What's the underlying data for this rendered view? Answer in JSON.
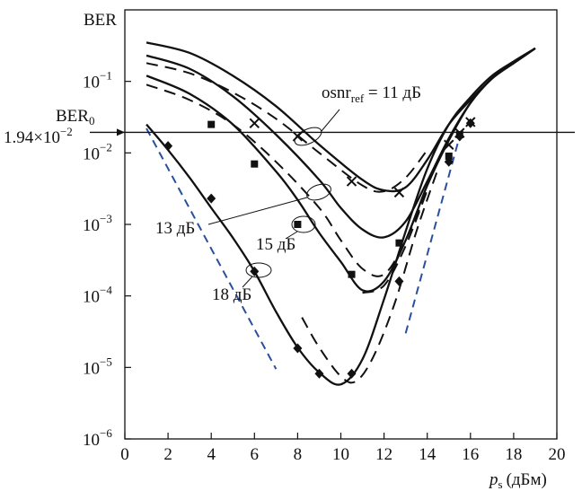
{
  "chart_data": {
    "type": "line",
    "ylabel": "BER",
    "xlabel": {
      "main": "p",
      "sub": "s",
      "unit": "(дБм)"
    },
    "x_ticks": [
      "0",
      "2",
      "4",
      "6",
      "8",
      "10",
      "12",
      "14",
      "16",
      "18",
      "20"
    ],
    "y_ticks": [
      {
        "base": "10",
        "exp": "−1"
      },
      {
        "base": "10",
        "exp": "−2"
      },
      {
        "base": "10",
        "exp": "−3"
      },
      {
        "base": "10",
        "exp": "−4"
      },
      {
        "base": "10",
        "exp": "−5"
      },
      {
        "base": "10",
        "exp": "−6"
      }
    ],
    "xlim": [
      0,
      20
    ],
    "ylim": [
      1e-06,
      1
    ],
    "y_scale": "log",
    "reference_line": {
      "y": 0.0194,
      "label_top": "BER",
      "label_top_sub": "0",
      "label_value_mantissa": "1.94×10",
      "label_value_exp": "−2"
    },
    "annotations": {
      "osnr_prefix": "osnr",
      "osnr_sub": "ref",
      "osnr_value": " = 11 дБ",
      "label_13": "13 дБ",
      "label_15": "15 дБ",
      "label_18": "18 дБ"
    },
    "series": [
      {
        "osnr_db": 11,
        "solid_theory": [
          [
            1,
            0.35
          ],
          [
            3,
            0.25
          ],
          [
            5,
            0.12
          ],
          [
            7,
            0.045
          ],
          [
            9,
            0.013
          ],
          [
            11,
            0.0042
          ],
          [
            12,
            0.003
          ],
          [
            13,
            0.0033
          ],
          [
            14,
            0.008
          ],
          [
            15,
            0.025
          ],
          [
            16,
            0.055
          ],
          [
            17,
            0.11
          ],
          [
            18,
            0.18
          ],
          [
            19,
            0.29
          ]
        ],
        "dashed_theory": [
          [
            1,
            0.18
          ],
          [
            3,
            0.13
          ],
          [
            5,
            0.07
          ],
          [
            7,
            0.03
          ],
          [
            9,
            0.01
          ],
          [
            11,
            0.0035
          ],
          [
            12,
            0.0029
          ],
          [
            13,
            0.0045
          ],
          [
            14,
            0.011
          ]
        ],
        "markers": "cross",
        "measured": [
          [
            6,
            0.026
          ],
          [
            8,
            0.017
          ],
          [
            10.5,
            0.004
          ],
          [
            12.7,
            0.0028
          ],
          [
            15,
            0.013
          ],
          [
            15.5,
            0.019
          ],
          [
            16,
            0.027
          ]
        ]
      },
      {
        "osnr_db": 13,
        "solid_theory": [
          [
            1,
            0.23
          ],
          [
            3,
            0.15
          ],
          [
            5,
            0.062
          ],
          [
            7,
            0.018
          ],
          [
            9,
            0.0042
          ],
          [
            10,
            0.0017
          ],
          [
            11,
            0.00085
          ],
          [
            12,
            0.00066
          ],
          [
            13,
            0.0011
          ],
          [
            14,
            0.004
          ],
          [
            15,
            0.016
          ],
          [
            16,
            0.05
          ],
          [
            17,
            0.11
          ],
          [
            18,
            0.18
          ],
          [
            19,
            0.29
          ]
        ],
        "dashed_theory": [
          [
            1,
            0.09
          ],
          [
            3,
            0.055
          ],
          [
            5,
            0.025
          ],
          [
            7,
            0.0075
          ],
          [
            9,
            0.0017
          ],
          [
            10,
            0.0006
          ],
          [
            11,
            0.00024
          ],
          [
            12,
            0.0002
          ],
          [
            13,
            0.0006
          ],
          [
            14,
            0.003
          ]
        ],
        "markers": "none",
        "measured": []
      },
      {
        "osnr_db": 15,
        "solid_theory": [
          [
            1,
            0.12
          ],
          [
            3,
            0.067
          ],
          [
            5,
            0.025
          ],
          [
            7,
            0.0055
          ],
          [
            8,
            0.0022
          ],
          [
            9,
            0.00076
          ],
          [
            10,
            0.0003
          ],
          [
            11,
            0.00012
          ],
          [
            12,
            0.00016
          ],
          [
            13,
            0.0006
          ],
          [
            14,
            0.0035
          ],
          [
            15,
            0.015
          ],
          [
            16,
            0.05
          ],
          [
            17,
            0.11
          ],
          [
            18,
            0.18
          ],
          [
            19,
            0.29
          ]
        ],
        "dashed_theory": [
          [
            11,
            0.00011
          ],
          [
            12,
            0.00014
          ],
          [
            13,
            0.0005
          ],
          [
            14,
            0.003
          ]
        ],
        "markers": "square",
        "measured": [
          [
            4,
            0.025
          ],
          [
            6,
            0.007
          ],
          [
            8,
            0.001
          ],
          [
            10.5,
            0.0002
          ],
          [
            12.7,
            0.00055
          ],
          [
            15,
            0.009
          ],
          [
            15.5,
            0.018
          ]
        ]
      },
      {
        "osnr_db": 18,
        "solid_theory": [
          [
            1,
            0.025
          ],
          [
            2,
            0.011
          ],
          [
            3,
            0.0045
          ],
          [
            4,
            0.0017
          ],
          [
            5,
            0.00065
          ],
          [
            6,
            0.00022
          ],
          [
            7,
            6e-05
          ],
          [
            8,
            1.9e-05
          ],
          [
            9,
            8.5e-06
          ],
          [
            10,
            5.8e-06
          ],
          [
            11,
            1.3e-05
          ],
          [
            12,
            9e-05
          ],
          [
            13,
            0.0008
          ],
          [
            14,
            0.006
          ],
          [
            15,
            0.025
          ],
          [
            16,
            0.06
          ],
          [
            17,
            0.12
          ],
          [
            18,
            0.19
          ],
          [
            19,
            0.29
          ]
        ],
        "dashed_theory": [
          [
            8.2,
            5e-05
          ],
          [
            9,
            1.9e-05
          ],
          [
            10,
            7.5e-06
          ],
          [
            10.7,
            6.4e-06
          ],
          [
            11.5,
            1.4e-05
          ],
          [
            12.5,
            8e-05
          ],
          [
            13.5,
            0.0008
          ],
          [
            14.5,
            0.006
          ]
        ],
        "markers": "diamond",
        "measured": [
          [
            2,
            0.0125
          ],
          [
            4,
            0.0023
          ],
          [
            6,
            0.00022
          ],
          [
            8,
            1.85e-05
          ],
          [
            9,
            8.2e-06
          ],
          [
            10.5,
            8.2e-06
          ],
          [
            12.7,
            0.00016
          ],
          [
            15,
            0.0075
          ],
          [
            15.5,
            0.017
          ],
          [
            16,
            0.026
          ]
        ]
      }
    ],
    "asymptotes": [
      {
        "color": "#2a4f9c",
        "points": [
          [
            1,
            0.022
          ],
          [
            7,
            9.5e-06
          ]
        ]
      },
      {
        "color": "#2a4f9c",
        "points": [
          [
            13,
            3e-05
          ],
          [
            15.6,
            0.022
          ]
        ]
      }
    ]
  }
}
